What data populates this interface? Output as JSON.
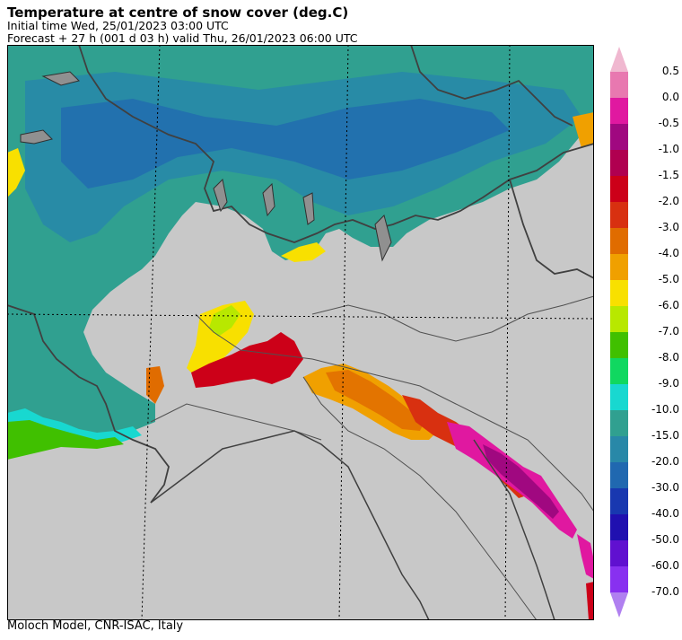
{
  "header": {
    "title": "Temperature at centre of snow cover (deg.C)",
    "initial": "Initial time  Wed, 25/01/2023  03:00 UTC",
    "forecast": "Forecast  +  27 h  (001 d 03 h)  valid Thu, 26/01/2023 06:00 UTC"
  },
  "footer": "Moloch Model, CNR-ISAC, Italy",
  "legend": {
    "labels": [
      "0.5",
      "0.0",
      "-0.5",
      "-1.0",
      "-1.5",
      "-2.0",
      "-3.0",
      "-4.0",
      "-5.0",
      "-6.0",
      "-7.0",
      "-8.0",
      "-9.0",
      "-10.0",
      "-15.0",
      "-20.0",
      "-30.0",
      "-40.0",
      "-50.0",
      "-60.0",
      "-70.0"
    ],
    "colors": [
      "#f0a8c8",
      "#e878b0",
      "#e018a0",
      "#a00880",
      "#b00050",
      "#cc0018",
      "#d83010",
      "#e06c00",
      "#f0a000",
      "#f8e000",
      "#b8e800",
      "#40c000",
      "#10d860",
      "#18d8d0",
      "#30a090",
      "#2888a8",
      "#2068b0",
      "#1838b0",
      "#2010b0",
      "#6010d0",
      "#8830f0",
      "#b080f0"
    ],
    "over_color": "#f0b8d0",
    "under_color": "#b080f0"
  },
  "map": {
    "background_color": "#c8c8c8",
    "snow_colors": {
      "cold": "#30a090",
      "colder": "#2888a8",
      "deep": "#2068b0",
      "fringe": "#18d8d0",
      "green": "#40c000",
      "lime": "#b8e800",
      "yellow": "#f8e000",
      "orange": "#f0a000",
      "dark_orange": "#e06c00",
      "red": "#cc0018",
      "red2": "#d83010",
      "magenta": "#e018a0",
      "purple": "#a00880"
    }
  }
}
